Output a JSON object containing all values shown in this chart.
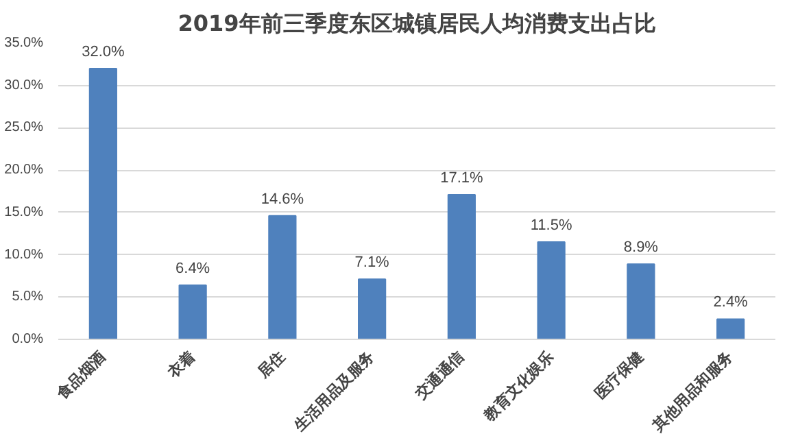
{
  "chart_data": {
    "type": "bar",
    "title": "2019年前三季度东区城镇居民人均消费支出占比",
    "categories": [
      "食品烟酒",
      "衣着",
      "居住",
      "生活用品及服务",
      "交通通信",
      "教育文化娱乐",
      "医疗保健",
      "其他用品和服务"
    ],
    "values": [
      32.0,
      6.4,
      14.6,
      7.1,
      17.1,
      11.5,
      8.9,
      2.4
    ],
    "value_labels": [
      "32.0%",
      "6.4%",
      "14.6%",
      "7.1%",
      "17.1%",
      "11.5%",
      "8.9%",
      "2.4%"
    ],
    "color": "#4f81bd",
    "ylim": [
      0,
      35
    ],
    "yticks": [
      {
        "value": 0,
        "label": "0.0%"
      },
      {
        "value": 5,
        "label": "5.0%"
      },
      {
        "value": 10,
        "label": "10.0%"
      },
      {
        "value": 15,
        "label": "15.0%"
      },
      {
        "value": 20,
        "label": "20.0%"
      },
      {
        "value": 25,
        "label": "25.0%"
      },
      {
        "value": 30,
        "label": "30.0%"
      },
      {
        "value": 35,
        "label": "35.0%"
      }
    ],
    "grid": "y"
  }
}
